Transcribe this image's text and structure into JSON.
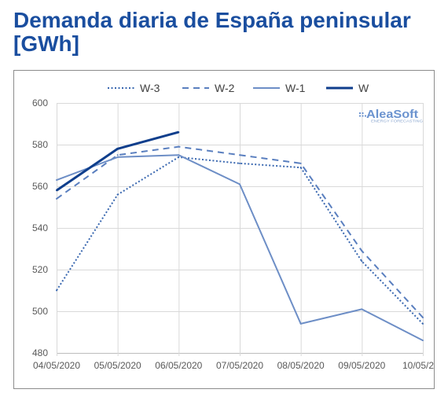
{
  "chart_data": {
    "type": "line",
    "title": "Demanda diaria de España peninsular [GWh]",
    "categories": [
      "04/05/2020",
      "05/05/2020",
      "06/05/2020",
      "07/05/2020",
      "08/05/2020",
      "09/05/2020",
      "10/05/2"
    ],
    "ylim": [
      480,
      600
    ],
    "yticks": [
      480,
      500,
      520,
      540,
      560,
      580,
      600
    ],
    "grid": true,
    "legend": "top",
    "series": [
      {
        "name": "W-3",
        "line_style": "dotted",
        "color": "#3a68b0",
        "values": [
          510,
          556,
          574,
          571,
          569,
          524,
          494
        ]
      },
      {
        "name": "W-2",
        "line_style": "dashed",
        "color": "#5a7fbf",
        "values": [
          554,
          575,
          579,
          575,
          571,
          529,
          497
        ]
      },
      {
        "name": "W-1",
        "line_style": "solid",
        "color": "#6d8ec6",
        "values": [
          563,
          574,
          575,
          561,
          494,
          501,
          486
        ]
      },
      {
        "name": "W",
        "line_style": "solid-thick",
        "color": "#0f3e8c",
        "values": [
          558,
          578,
          586,
          null,
          null,
          null,
          null
        ]
      }
    ]
  },
  "logo": {
    "wordmark": "AleaSoft",
    "tagline": "ENERGY FORECASTING"
  },
  "colors": {
    "title": "#1a4e9f"
  }
}
